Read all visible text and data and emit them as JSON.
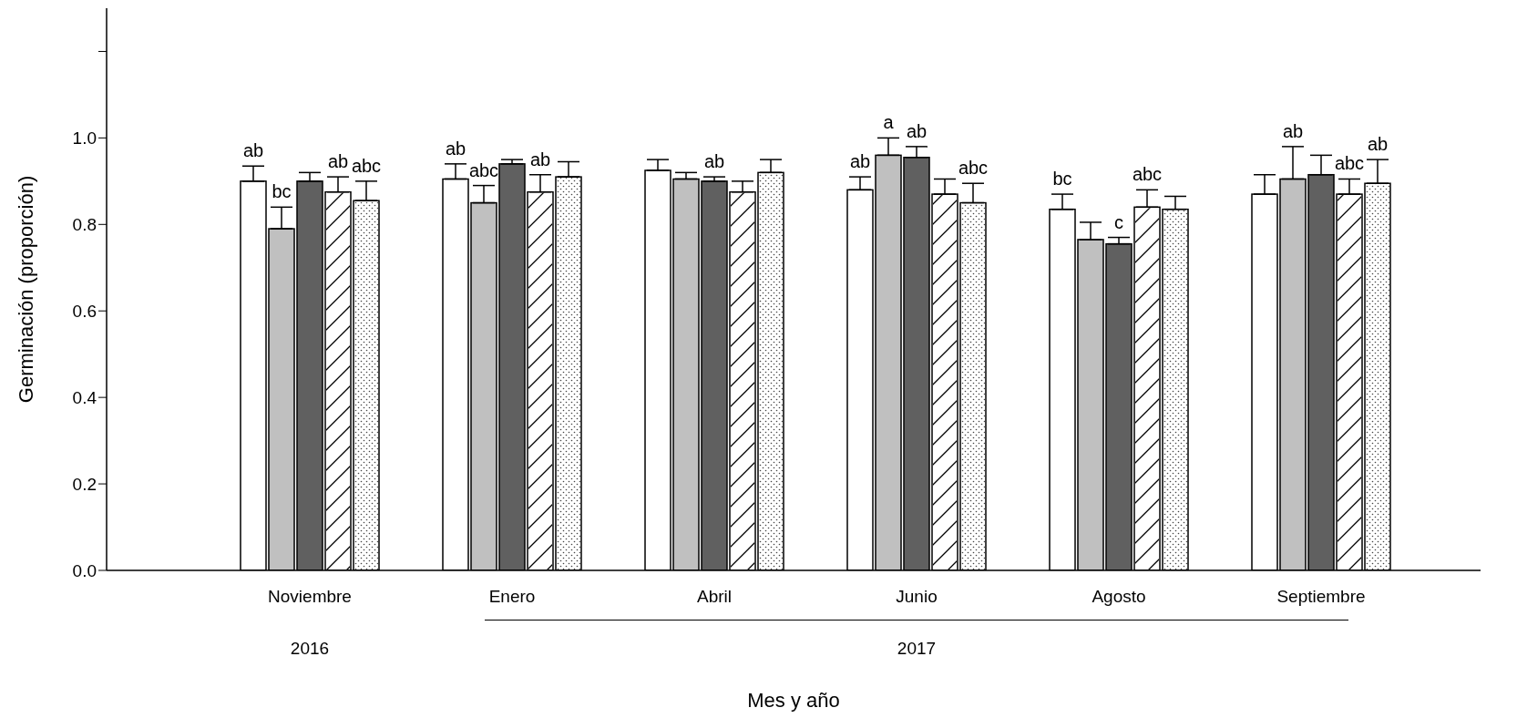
{
  "chart_data": {
    "type": "bar",
    "xlabel": "Mes y año",
    "ylabel": "Germinación (proporción)",
    "categories": [
      "Noviembre",
      "Enero",
      "Abril",
      "Junio",
      "Agosto",
      "Septiembre"
    ],
    "series": [
      {
        "color": "#ffffff",
        "values": [
          0.9,
          0.905,
          0.925,
          0.88,
          0.835,
          0.87
        ],
        "errors": [
          0.035,
          0.035,
          0.025,
          0.03,
          0.035,
          0.045
        ],
        "value_labels": [
          "ab",
          "ab",
          null,
          "ab",
          "bc",
          null
        ]
      },
      {
        "color": "#c0c0c0",
        "values": [
          0.79,
          0.85,
          0.905,
          0.96,
          0.765,
          0.905
        ],
        "errors": [
          0.05,
          0.04,
          0.015,
          0.04,
          0.04,
          0.075
        ],
        "value_labels": [
          "bc",
          "abc",
          null,
          "a",
          null,
          "ab"
        ]
      },
      {
        "color": "#606060",
        "values": [
          0.9,
          0.94,
          0.9,
          0.955,
          0.755,
          0.915
        ],
        "errors": [
          0.02,
          0.01,
          0.01,
          0.025,
          0.015,
          0.045
        ],
        "value_labels": [
          null,
          null,
          "ab",
          "ab",
          "c",
          null
        ]
      },
      {
        "color": "#ffffff",
        "values": [
          0.875,
          0.875,
          0.875,
          0.87,
          0.84,
          0.87
        ],
        "errors": [
          0.035,
          0.04,
          0.025,
          0.035,
          0.04,
          0.035
        ],
        "value_labels": [
          "ab",
          "ab",
          null,
          null,
          "abc",
          "abc"
        ]
      },
      {
        "color": "#ffffff",
        "values": [
          0.855,
          0.91,
          0.92,
          0.85,
          0.835,
          0.895
        ],
        "errors": [
          0.045,
          0.035,
          0.03,
          0.045,
          0.03,
          0.055
        ],
        "value_labels": [
          "abc",
          null,
          null,
          "abc",
          null,
          "ab"
        ]
      }
    ],
    "ylim": [
      0,
      1.3
    ],
    "yticks": [
      {
        "value": 0,
        "label": "0.0"
      },
      0.2,
      0.4,
      0.6,
      0.8,
      {
        "value": 1,
        "label": "1.0"
      },
      {
        "value": 1.2,
        "label": null
      }
    ],
    "annotations": [
      "2016",
      "2017"
    ],
    "grid": false,
    "legend": false
  }
}
